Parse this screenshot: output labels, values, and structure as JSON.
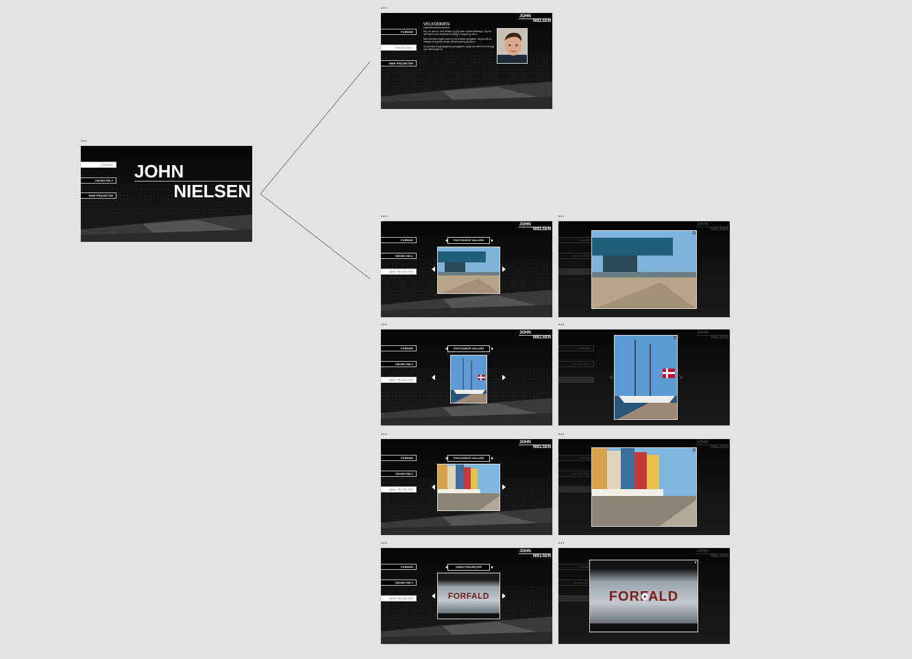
{
  "artboard_label": "•••",
  "nav": {
    "home": "FORSIDE",
    "about": "OM MIG SELV",
    "projects": "MINE PROJEKTER"
  },
  "logo": {
    "first": "JOHN",
    "last": "NIELSEN"
  },
  "about": {
    "title": "VELKOMMEN",
    "paragraphs": [
      "Hej, mit navn er John Nielsen, og jeg læser multimediedesign. Jeg har altid haft en stor interesse for design, fotografi og video.",
      "Mine interesser ligger inden for det kreative og digitale. Jeg kan lide at arbejde med grafisk design, billedredigering og layout.",
      "Som person er jeg nysgerrig og engageret, og jeg ser altid frem til at tage nye udfordringer op."
    ]
  },
  "gallery": {
    "photo_title": "PHOTOSHOP GALLERI",
    "video_title": "VIDEO PROJEKTER",
    "video_caption": "FORFALD"
  },
  "colors": {
    "bg": "#e3e3e3",
    "artboard": "#0b0b0b",
    "video_text": "#7a1f1f"
  },
  "icons": {
    "prev": "chevron-left-icon",
    "next": "chevron-right-icon",
    "close": "close-icon",
    "play": "play-icon"
  }
}
